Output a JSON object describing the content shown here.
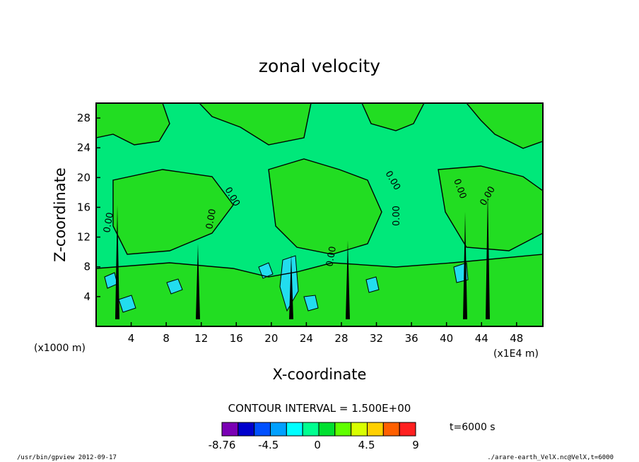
{
  "chart_data": {
    "type": "heatmap",
    "title": "zonal velocity",
    "xlabel": "X-coordinate",
    "ylabel": "Z-coordinate",
    "x_unit": "(x1E4 m)",
    "y_unit": "(x1000 m)",
    "xlim": [
      0,
      51
    ],
    "ylim": [
      0,
      30
    ],
    "x_ticks": [
      "4",
      "8",
      "12",
      "16",
      "20",
      "24",
      "28",
      "32",
      "36",
      "40",
      "44",
      "48"
    ],
    "y_ticks": [
      "4",
      "8",
      "12",
      "16",
      "20",
      "24",
      "28"
    ],
    "contour_interval_text": "CONTOUR INTERVAL = 1.500E+00",
    "contour_label": "0.00",
    "time_label": "t=6000 s",
    "colorbar": {
      "colors": [
        "#7a00b4",
        "#0000cc",
        "#0050ff",
        "#00a0ff",
        "#00ffff",
        "#00ff90",
        "#00e030",
        "#60ff00",
        "#d8ff00",
        "#ffd000",
        "#ff6000",
        "#ff2020"
      ],
      "tick_labels": [
        "-8.76",
        "-4.5",
        "0",
        "4.5",
        "9"
      ],
      "tick_values": [
        -8.76,
        -4.5,
        0,
        4.5,
        9
      ]
    },
    "dominant_colors": {
      "light": "#00e87a",
      "dark": "#22dd22",
      "negative": "#22ddee"
    },
    "footer_left": "/usr/bin/gpview  2012-09-17",
    "footer_right": "./arare-earth_VelX.nc@VelX,t=6000"
  }
}
